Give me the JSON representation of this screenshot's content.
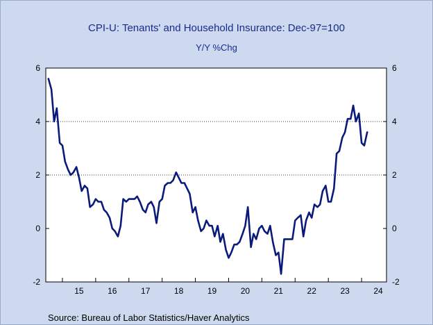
{
  "chart_data": {
    "type": "line",
    "title": "CPI-U: Tenants' and Household Insurance: Dec-97=100",
    "subtitle": "Y/Y %Chg",
    "source": "Source:  Bureau of Labor Statistics/Haver Analytics",
    "xlabel": "",
    "ylabel": "",
    "ylim": [
      -2,
      6
    ],
    "xlim": [
      2014.5,
      2024.75
    ],
    "y_ticks": [
      -2,
      0,
      2,
      4,
      6
    ],
    "x_tick_labels": [
      "15",
      "16",
      "17",
      "18",
      "19",
      "20",
      "21",
      "22",
      "23",
      "24"
    ],
    "gridlines": [
      2,
      4
    ],
    "line_color": "#0a1a7a",
    "plot_background": "#ffffff",
    "frame_background": "#ccd9ee",
    "title_color": "#1a2a8c",
    "series": [
      {
        "values": [
          [
            2014.58,
            5.6
          ],
          [
            2014.67,
            5.2
          ],
          [
            2014.75,
            4.0
          ],
          [
            2014.83,
            4.5
          ],
          [
            2014.92,
            3.2
          ],
          [
            2015.0,
            3.1
          ],
          [
            2015.08,
            2.5
          ],
          [
            2015.17,
            2.2
          ],
          [
            2015.25,
            2.0
          ],
          [
            2015.33,
            2.1
          ],
          [
            2015.42,
            2.3
          ],
          [
            2015.5,
            1.9
          ],
          [
            2015.58,
            1.4
          ],
          [
            2015.67,
            1.6
          ],
          [
            2015.75,
            1.5
          ],
          [
            2015.83,
            0.8
          ],
          [
            2015.92,
            0.9
          ],
          [
            2016.0,
            1.1
          ],
          [
            2016.08,
            1.0
          ],
          [
            2016.17,
            1.0
          ],
          [
            2016.25,
            0.7
          ],
          [
            2016.33,
            0.6
          ],
          [
            2016.42,
            0.4
          ],
          [
            2016.5,
            0.0
          ],
          [
            2016.58,
            -0.1
          ],
          [
            2016.67,
            -0.3
          ],
          [
            2016.75,
            0.1
          ],
          [
            2016.83,
            1.1
          ],
          [
            2016.92,
            1.0
          ],
          [
            2017.0,
            1.1
          ],
          [
            2017.08,
            1.1
          ],
          [
            2017.17,
            1.1
          ],
          [
            2017.25,
            1.2
          ],
          [
            2017.33,
            1.0
          ],
          [
            2017.42,
            0.7
          ],
          [
            2017.5,
            0.6
          ],
          [
            2017.58,
            0.9
          ],
          [
            2017.67,
            1.0
          ],
          [
            2017.75,
            0.8
          ],
          [
            2017.83,
            0.2
          ],
          [
            2017.92,
            1.0
          ],
          [
            2018.0,
            1.1
          ],
          [
            2018.08,
            1.6
          ],
          [
            2018.17,
            1.7
          ],
          [
            2018.25,
            1.7
          ],
          [
            2018.33,
            1.8
          ],
          [
            2018.42,
            2.1
          ],
          [
            2018.5,
            1.9
          ],
          [
            2018.58,
            1.7
          ],
          [
            2018.67,
            1.7
          ],
          [
            2018.75,
            1.5
          ],
          [
            2018.83,
            1.3
          ],
          [
            2018.92,
            0.6
          ],
          [
            2019.0,
            0.8
          ],
          [
            2019.08,
            0.3
          ],
          [
            2019.17,
            -0.1
          ],
          [
            2019.25,
            0.0
          ],
          [
            2019.33,
            0.3
          ],
          [
            2019.42,
            0.1
          ],
          [
            2019.5,
            0.1
          ],
          [
            2019.58,
            -0.3
          ],
          [
            2019.67,
            0.1
          ],
          [
            2019.75,
            -0.5
          ],
          [
            2019.83,
            -0.2
          ],
          [
            2019.92,
            -0.8
          ],
          [
            2020.0,
            -1.1
          ],
          [
            2020.08,
            -0.9
          ],
          [
            2020.17,
            -0.6
          ],
          [
            2020.25,
            -0.6
          ],
          [
            2020.33,
            -0.5
          ],
          [
            2020.42,
            -0.2
          ],
          [
            2020.5,
            0.1
          ],
          [
            2020.58,
            0.8
          ],
          [
            2020.67,
            -0.7
          ],
          [
            2020.75,
            -0.2
          ],
          [
            2020.83,
            -0.4
          ],
          [
            2020.92,
            0.0
          ],
          [
            2021.0,
            0.1
          ],
          [
            2021.08,
            -0.1
          ],
          [
            2021.17,
            -0.2
          ],
          [
            2021.25,
            0.1
          ],
          [
            2021.33,
            -0.5
          ],
          [
            2021.42,
            -1.0
          ],
          [
            2021.5,
            -0.9
          ],
          [
            2021.58,
            -1.7
          ],
          [
            2021.67,
            -0.4
          ],
          [
            2021.75,
            -0.4
          ],
          [
            2021.83,
            -0.4
          ],
          [
            2021.92,
            -0.4
          ],
          [
            2022.0,
            0.3
          ],
          [
            2022.08,
            0.4
          ],
          [
            2022.17,
            0.5
          ],
          [
            2022.25,
            -0.3
          ],
          [
            2022.33,
            0.3
          ],
          [
            2022.42,
            0.6
          ],
          [
            2022.5,
            0.4
          ],
          [
            2022.58,
            0.9
          ],
          [
            2022.67,
            0.8
          ],
          [
            2022.75,
            0.9
          ],
          [
            2022.83,
            1.4
          ],
          [
            2022.92,
            1.6
          ],
          [
            2023.0,
            1.0
          ],
          [
            2023.08,
            1.0
          ],
          [
            2023.17,
            1.5
          ],
          [
            2023.25,
            2.8
          ],
          [
            2023.33,
            2.9
          ],
          [
            2023.42,
            3.4
          ],
          [
            2023.5,
            3.6
          ],
          [
            2023.58,
            4.1
          ],
          [
            2023.67,
            4.1
          ],
          [
            2023.75,
            4.6
          ],
          [
            2023.83,
            4.0
          ],
          [
            2023.92,
            4.3
          ],
          [
            2024.0,
            3.2
          ],
          [
            2024.08,
            3.1
          ],
          [
            2024.17,
            3.6
          ]
        ]
      }
    ]
  }
}
